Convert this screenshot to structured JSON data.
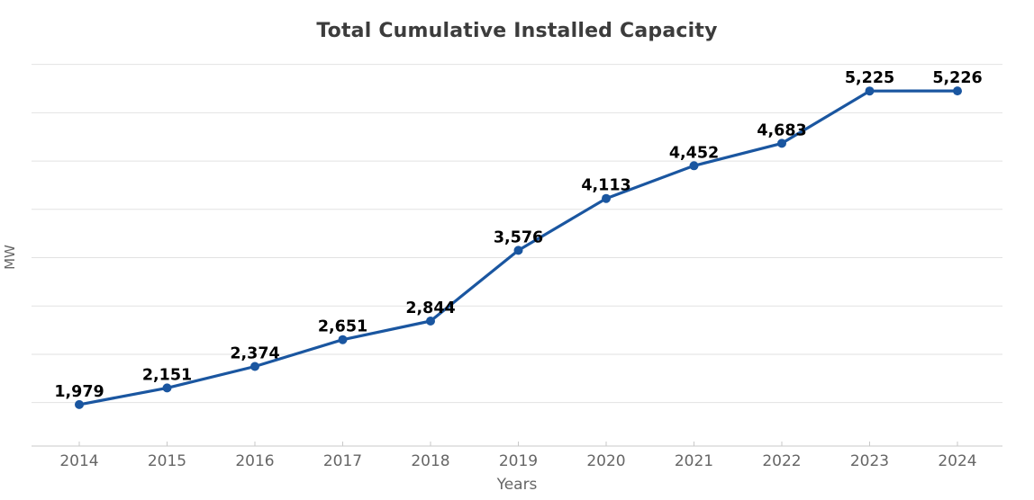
{
  "chart_data": {
    "type": "line",
    "title": "Total Cumulative Installed Capacity",
    "xlabel": "Years",
    "ylabel": "MW",
    "categories": [
      "2014",
      "2015",
      "2016",
      "2017",
      "2018",
      "2019",
      "2020",
      "2021",
      "2022",
      "2023",
      "2024"
    ],
    "series": [
      {
        "name": "Total Cumulative Installed Capacity",
        "values": [
          1979,
          2151,
          2374,
          2651,
          2844,
          3576,
          4113,
          4452,
          4683,
          5225,
          5226
        ],
        "data_labels": [
          "1,979",
          "2,151",
          "2,374",
          "2,651",
          "2,844",
          "3,576",
          "4,113",
          "4,452",
          "4,683",
          "5,225",
          "5,226"
        ]
      }
    ],
    "ylim": [
      1550,
      5590
    ],
    "gridline_values": [
      2000,
      2500,
      3000,
      3500,
      4000,
      4500,
      5000,
      5500
    ],
    "y_tick_labels_shown": false,
    "grid": true,
    "legend": "none",
    "colors": {
      "line": "#1a56a0",
      "marker": "#1a56a0",
      "grid": "#e2e2e2",
      "axis": "#c9c9c9",
      "data_label": "#000000",
      "tick_label": "#666666",
      "axis_title": "#666666",
      "title": "#3c3c3c",
      "background": "#ffffff"
    }
  }
}
